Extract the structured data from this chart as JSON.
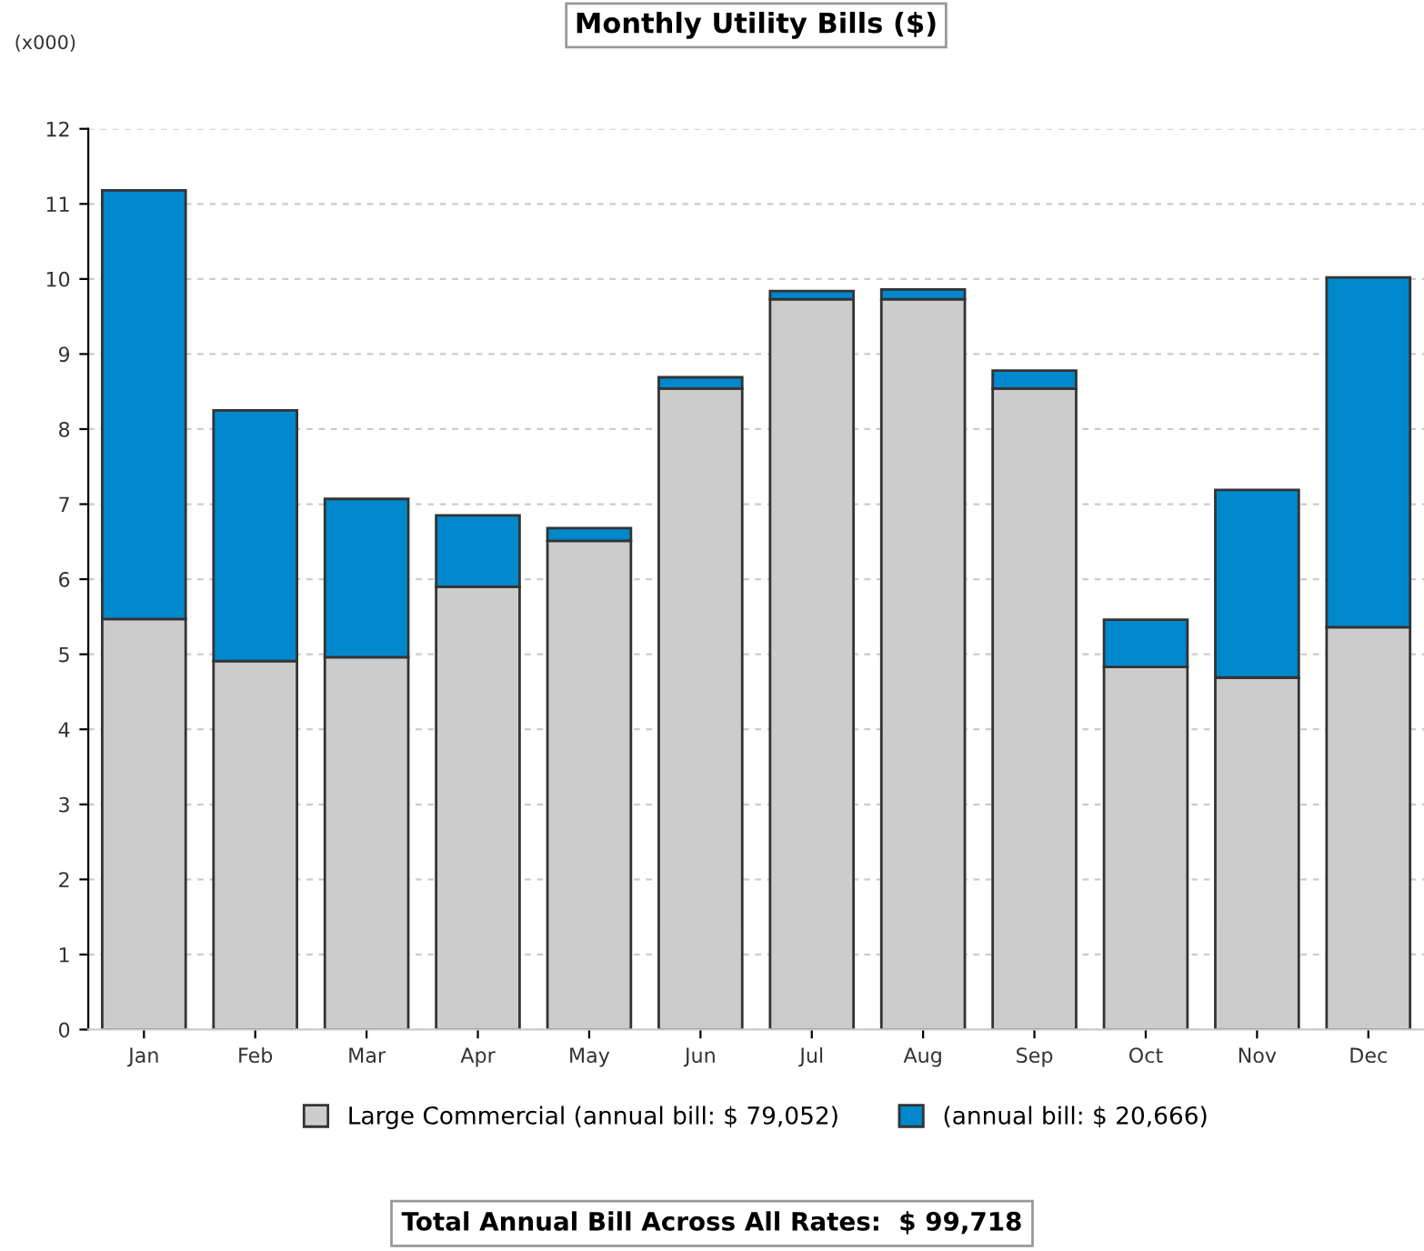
{
  "chart_data": {
    "type": "bar",
    "title": "Monthly Utility Bills ($)",
    "stacked": true,
    "categories": [
      "Jan",
      "Feb",
      "Mar",
      "Apr",
      "May",
      "Jun",
      "Jul",
      "Aug",
      "Sep",
      "Oct",
      "Nov",
      "Dec"
    ],
    "series": [
      {
        "name": "Large Commercial (annual bill: $ 79,052)",
        "color": "#cccccc",
        "values": [
          5.47,
          4.91,
          4.96,
          5.9,
          6.51,
          8.54,
          9.73,
          9.73,
          8.54,
          4.83,
          4.69,
          5.36
        ]
      },
      {
        "name": "(annual bill: $ 20,666)",
        "color": "#0088cc",
        "values": [
          5.71,
          3.34,
          2.11,
          0.95,
          0.17,
          0.15,
          0.11,
          0.13,
          0.24,
          0.63,
          2.5,
          4.66
        ]
      }
    ],
    "ylim": [
      0,
      12
    ],
    "yticks": [
      0,
      1,
      2,
      3,
      4,
      5,
      6,
      7,
      8,
      9,
      10,
      11,
      12
    ],
    "grid": "y",
    "legend": "bottom",
    "annotations": [
      "(x000)",
      "Total Annual Bill Across All Rates:  $ 99,718"
    ]
  }
}
